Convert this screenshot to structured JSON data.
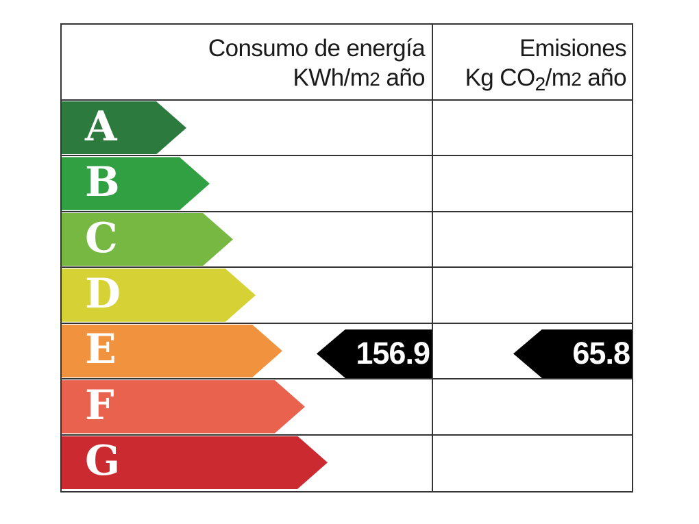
{
  "colors": {
    "border": "#333333",
    "header_text": "#1a1a1a",
    "letter_text": "#ffffff",
    "marker_background": "#000000",
    "marker_text": "#ffffff"
  },
  "header": {
    "consumption": {
      "line1": "Consumo de energía",
      "line2_parts": [
        {
          "t": "KWh/m",
          "style": "normal"
        },
        {
          "t": "2",
          "style": "small"
        },
        {
          "t": " año",
          "style": "normal"
        }
      ]
    },
    "emissions": {
      "line1": "Emisiones",
      "line2_parts": [
        {
          "t": "Kg CO",
          "style": "normal"
        },
        {
          "t": "2",
          "style": "sub"
        },
        {
          "t": "/m",
          "style": "normal"
        },
        {
          "t": "2",
          "style": "small"
        },
        {
          "t": " año",
          "style": "normal"
        }
      ]
    }
  },
  "rows": [
    {
      "letter": "A",
      "color": "#2d7a3e",
      "arrow_width": 182
    },
    {
      "letter": "B",
      "color": "#31a042",
      "arrow_width": 216
    },
    {
      "letter": "C",
      "color": "#76b842",
      "arrow_width": 250
    },
    {
      "letter": "D",
      "color": "#d6d235",
      "arrow_width": 283
    },
    {
      "letter": "E",
      "color": "#f0923e",
      "arrow_width": 322
    },
    {
      "letter": "F",
      "color": "#e8624d",
      "arrow_width": 355
    },
    {
      "letter": "G",
      "color": "#cb2a30",
      "arrow_width": 388
    }
  ],
  "markers": {
    "row": "E",
    "consumption_value": "156.9",
    "emissions_value": "65.8"
  },
  "chart_data": {
    "type": "bar",
    "title": "",
    "columns": [
      "Consumo de energía KWh/m2 año",
      "Emisiones Kg CO2/m2 año"
    ],
    "categories": [
      "A",
      "B",
      "C",
      "D",
      "E",
      "F",
      "G"
    ],
    "rating": "E",
    "values": {
      "consumo_kwh_m2_ano": 156.9,
      "emisiones_kg_co2_m2_ano": 65.8
    },
    "palette": [
      "#2d7a3e",
      "#31a042",
      "#76b842",
      "#d6d235",
      "#f0923e",
      "#e8624d",
      "#cb2a30"
    ],
    "marker_color": "#000000",
    "legend_position": "none",
    "grid": true
  }
}
